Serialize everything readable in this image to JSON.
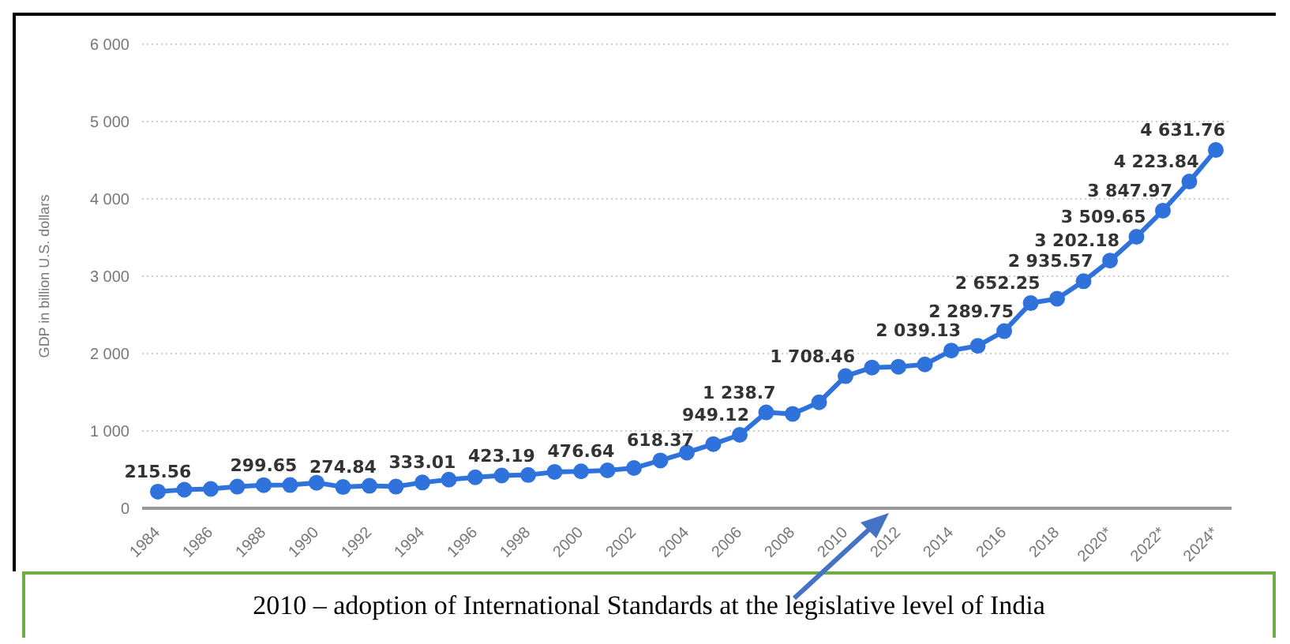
{
  "chart_data": {
    "type": "line",
    "ylabel": "GDP in billion U.S. dollars",
    "categories": [
      "1984",
      null,
      "1986",
      null,
      "1988",
      null,
      "1990",
      null,
      "1992",
      null,
      "1994",
      null,
      "1996",
      null,
      "1998",
      null,
      "2000",
      null,
      "2002",
      null,
      "2004",
      null,
      "2006",
      null,
      "2008",
      null,
      "2010",
      null,
      "2012",
      null,
      "2014",
      null,
      "2016",
      null,
      "2018",
      null,
      "2020*",
      null,
      "2022*",
      null,
      "2024*"
    ],
    "series": [
      {
        "color": "#2f72dc",
        "values": [
          215.56,
          240,
          250,
          280,
          299.65,
          300,
          330,
          274.84,
          290,
          280,
          333.01,
          370,
          400,
          423.19,
          430,
          470,
          476.64,
          490,
          520,
          618.37,
          720,
          830,
          949.12,
          1238.7,
          1220,
          1370,
          1708.46,
          1820,
          1830,
          1860,
          2039.13,
          2100,
          2289.75,
          2652.25,
          2710,
          2935.57,
          3202.18,
          3509.65,
          3847.97,
          4223.84,
          4631.76
        ],
        "value_labels": [
          "215.56",
          null,
          null,
          null,
          "299.65",
          null,
          null,
          "274.84",
          null,
          null,
          "333.01",
          null,
          null,
          "423.19",
          null,
          null,
          "476.64",
          null,
          null,
          "618.37",
          null,
          null,
          "949.12",
          "1 238.7",
          null,
          null,
          "1 708.46",
          null,
          null,
          null,
          "2 039.13",
          null,
          "2 289.75",
          "2 652.25",
          null,
          "2 935.57",
          "3 202.18",
          "3 509.65",
          "3 847.97",
          "4 223.84",
          "4 631.76"
        ]
      }
    ],
    "ylim": [
      0,
      6000
    ],
    "yticks": [
      {
        "value": 0,
        "label": "0"
      },
      {
        "value": 1000,
        "label": "1 000"
      },
      {
        "value": 2000,
        "label": "2 000"
      },
      {
        "value": 3000,
        "label": "3 000"
      },
      {
        "value": 4000,
        "label": "4 000"
      },
      {
        "value": 5000,
        "label": "5 000"
      },
      {
        "value": 6000,
        "label": "6 000"
      }
    ],
    "grid": "y",
    "marker": "circle",
    "line_style": "solid",
    "annotations": [
      "2010 – adoption of International Standards at the legislative level of India"
    ]
  }
}
